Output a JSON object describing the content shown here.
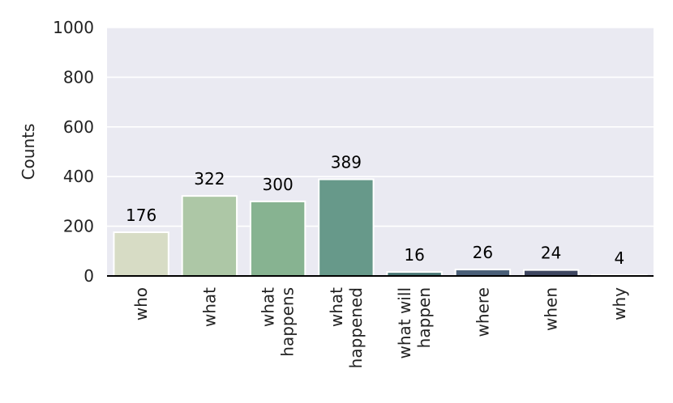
{
  "chart_data": {
    "type": "bar",
    "title": "",
    "xlabel": "",
    "ylabel": "Counts",
    "ylim": [
      0,
      1000
    ],
    "yticks": [
      0,
      200,
      400,
      600,
      800,
      1000
    ],
    "grid": true,
    "categories": [
      [
        "who"
      ],
      [
        "what"
      ],
      [
        "what",
        "happens"
      ],
      [
        "what",
        "happened"
      ],
      [
        "what will",
        "happen"
      ],
      [
        "where"
      ],
      [
        "when"
      ],
      [
        "why"
      ]
    ],
    "values": [
      176,
      322,
      300,
      389,
      16,
      26,
      24,
      4
    ],
    "bar_colors": [
      "#d7dcc5",
      "#adc7a6",
      "#87b391",
      "#67998a",
      "#4c7a78",
      "#4a5f78",
      "#3f4761",
      "#2f2b40"
    ],
    "background_color": "#eaeaf2",
    "grid_color": "#ffffff"
  }
}
